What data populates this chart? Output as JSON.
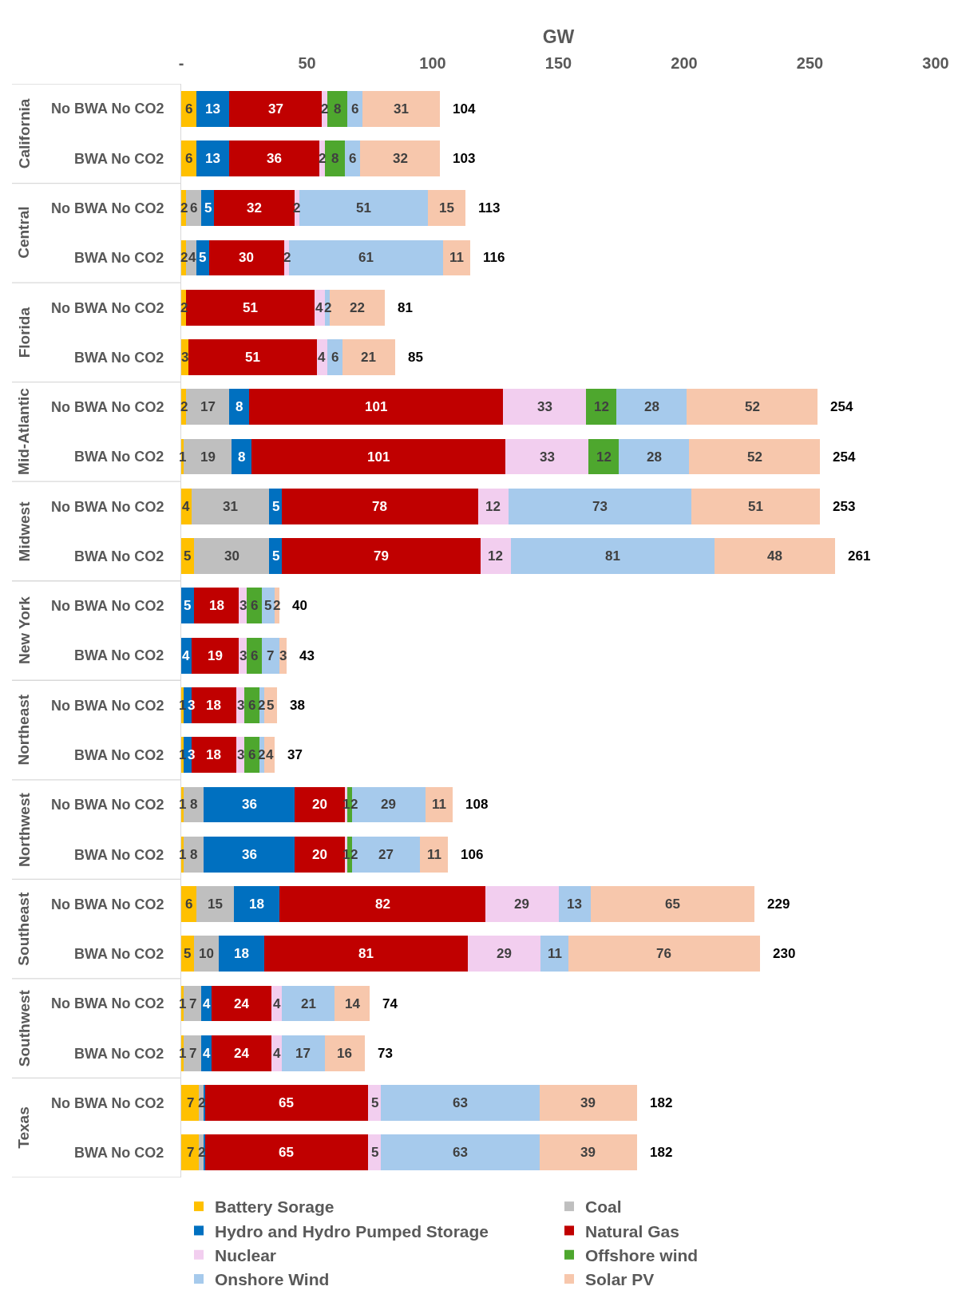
{
  "chart_data": {
    "type": "bar",
    "orientation": "horizontal",
    "stacked": true,
    "xlabel": "GW",
    "categories": [
      "No BWA No CO2",
      "BWA No CO2",
      "No BWA No CO2",
      "BWA No CO2",
      "No BWA No CO2",
      "BWA No CO2",
      "No BWA No CO2",
      "BWA No CO2",
      "No BWA No CO2",
      "BWA No CO2",
      "No BWA No CO2",
      "BWA No CO2",
      "No BWA No CO2",
      "BWA No CO2",
      "No BWA No CO2",
      "BWA No CO2",
      "No BWA No CO2",
      "BWA No CO2",
      "No BWA No CO2",
      "BWA No CO2",
      "No BWA No CO2",
      "BWA No CO2"
    ],
    "annotations": [
      "California",
      "Central",
      "Florida",
      "Mid-Atlantic",
      "Midwest",
      "New York",
      "Northeast",
      "Northwest",
      "Southeast",
      "Southwest",
      "Texas"
    ],
    "xlim": [
      0,
      300
    ],
    "xticks": [
      {
        "value": 0,
        "label": "-"
      },
      50,
      100,
      150,
      200,
      250,
      300
    ],
    "legend": "bottom",
    "series": [
      {
        "name": "Battery Sorage",
        "color": "#ffc000",
        "values": [
          6,
          6,
          2,
          2,
          2,
          3,
          2,
          1,
          4,
          5,
          null,
          null,
          1,
          1,
          1,
          1,
          6,
          5,
          1,
          1,
          7,
          7
        ],
        "value_labels": [
          "6",
          "6",
          "2",
          "2",
          "2",
          "3",
          "2",
          "1",
          "4",
          "5",
          null,
          null,
          "1",
          "1",
          "1",
          "1",
          "6",
          "5",
          "1",
          "1",
          "7",
          "7"
        ]
      },
      {
        "name": "Coal",
        "color": "#bfbfbf",
        "values": [
          null,
          null,
          6,
          4,
          null,
          null,
          17,
          19,
          31,
          30,
          null,
          null,
          null,
          null,
          8,
          8,
          15,
          10,
          7,
          7,
          2,
          2
        ],
        "value_labels": [
          null,
          null,
          "6",
          "4",
          null,
          null,
          "17",
          "19",
          "31",
          "30",
          null,
          null,
          null,
          null,
          "8",
          "8",
          "15",
          "10",
          "7",
          "7",
          "2",
          "2"
        ]
      },
      {
        "name": "Hydro and Hydro Pumped Storage",
        "color": "#0070c0",
        "values": [
          13,
          13,
          5,
          5,
          null,
          null,
          8,
          8,
          5,
          5,
          5,
          4,
          3,
          3,
          36,
          36,
          18,
          18,
          4,
          4,
          0.4,
          0.4
        ],
        "value_labels": [
          "13",
          "13",
          "5",
          "5",
          null,
          null,
          "8",
          "8",
          "5",
          "5",
          "5",
          "4",
          "3",
          "3",
          "36",
          "36",
          "18",
          "18",
          "4",
          "4",
          null,
          null
        ]
      },
      {
        "name": "Natural Gas",
        "color": "#c00000",
        "values": [
          37,
          36,
          32,
          30,
          51,
          51,
          101,
          101,
          78,
          79,
          18,
          19,
          18,
          18,
          20,
          20,
          82,
          81,
          24,
          24,
          65,
          65
        ],
        "value_labels": [
          "37",
          "36",
          "32",
          "30",
          "51",
          "51",
          "101",
          "101",
          "78",
          "79",
          "18",
          "19",
          "18",
          "18",
          "20",
          "20",
          "82",
          "81",
          "24",
          "24",
          "65",
          "65"
        ]
      },
      {
        "name": "Nuclear",
        "color": "#f2ceef",
        "values": [
          2,
          2,
          2,
          2,
          4,
          4,
          33,
          33,
          12,
          12,
          3,
          3,
          3,
          3,
          1,
          1,
          29,
          29,
          4,
          4,
          5,
          5
        ],
        "value_labels": [
          "2",
          "2",
          "2",
          "2",
          "4",
          "4",
          "33",
          "33",
          "12",
          "12",
          "3",
          "3",
          "3",
          "3",
          "1",
          "1",
          "29",
          "29",
          "4",
          "4",
          "5",
          "5"
        ]
      },
      {
        "name": "Offshore wind",
        "color": "#4ea72e",
        "values": [
          8,
          8,
          null,
          null,
          null,
          null,
          12,
          12,
          null,
          null,
          6,
          6,
          6,
          6,
          2,
          2,
          null,
          null,
          null,
          null,
          null,
          null
        ],
        "value_labels": [
          "8",
          "8",
          null,
          null,
          null,
          null,
          "12",
          "12",
          null,
          null,
          "6",
          "6",
          "6",
          "6",
          "2",
          "2",
          null,
          null,
          null,
          null,
          null,
          null
        ]
      },
      {
        "name": "Onshore Wind",
        "color": "#a6caec",
        "values": [
          6,
          6,
          51,
          61,
          2,
          6,
          28,
          28,
          73,
          81,
          5,
          7,
          2,
          2,
          29,
          27,
          13,
          11,
          21,
          17,
          63,
          63
        ],
        "value_labels": [
          "6",
          "6",
          "51",
          "61",
          "2",
          "6",
          "28",
          "28",
          "73",
          "81",
          "5",
          "7",
          "2",
          "2",
          "29",
          "27",
          "13",
          "11",
          "21",
          "17",
          "63",
          "63"
        ]
      },
      {
        "name": "Solar PV",
        "color": "#f7c7ac",
        "values": [
          31,
          32,
          15,
          11,
          22,
          21,
          52,
          52,
          51,
          48,
          2,
          3,
          5,
          4,
          11,
          11,
          65,
          76,
          14,
          16,
          39,
          39
        ],
        "value_labels": [
          "31",
          "32",
          "15",
          "11",
          "22",
          "21",
          "52",
          "52",
          "51",
          "48",
          "2",
          "3",
          "5",
          "4",
          "11",
          "11",
          "65",
          "76",
          "14",
          "16",
          "39",
          "39"
        ]
      }
    ],
    "totals": [
      "104",
      "103",
      "113",
      "116",
      "81",
      "85",
      "254",
      "254",
      "253",
      "261",
      "40",
      "43",
      "38",
      "37",
      "108",
      "106",
      "229",
      "230",
      "74",
      "73",
      "182",
      "182"
    ]
  }
}
